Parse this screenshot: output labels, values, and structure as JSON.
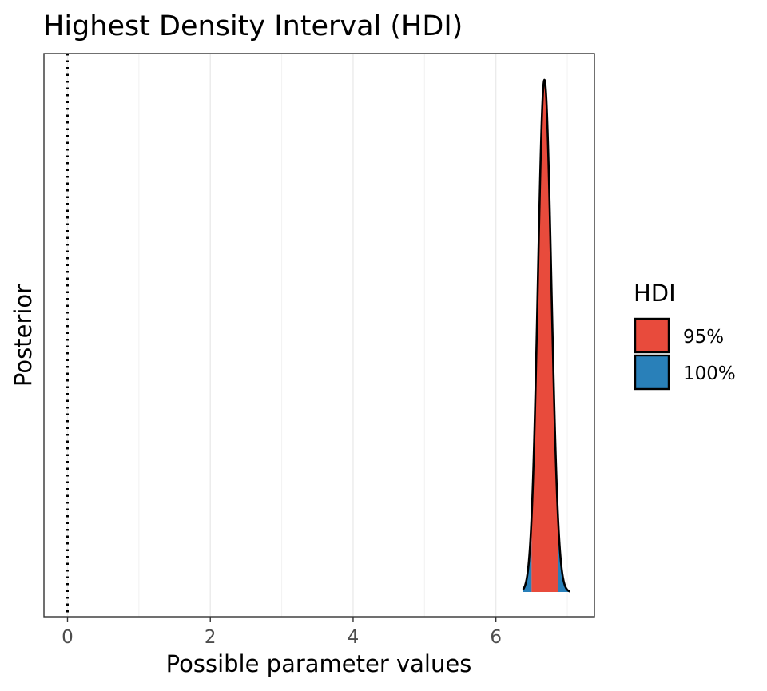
{
  "chart_data": {
    "type": "area",
    "title": "Highest Density Interval (HDI)",
    "xlabel": "Possible parameter values",
    "ylabel": "Posterior",
    "xlim": [
      -0.33,
      7.38
    ],
    "x_ticks": [
      0,
      2,
      4,
      6
    ],
    "x_tick_labels": [
      "0",
      "2",
      "4",
      "6"
    ],
    "grid": true,
    "reference_line": {
      "x": 0,
      "style": "dotted"
    },
    "density": {
      "x_min": 6.38,
      "x_max": 7.04,
      "mode": 6.68,
      "hdi_95": [
        6.5,
        6.87
      ]
    },
    "series": [
      {
        "name": "95%",
        "color": "#e84b3c"
      },
      {
        "name": "100%",
        "color": "#2980b9"
      }
    ],
    "legend": {
      "title": "HDI",
      "position": "right"
    }
  }
}
